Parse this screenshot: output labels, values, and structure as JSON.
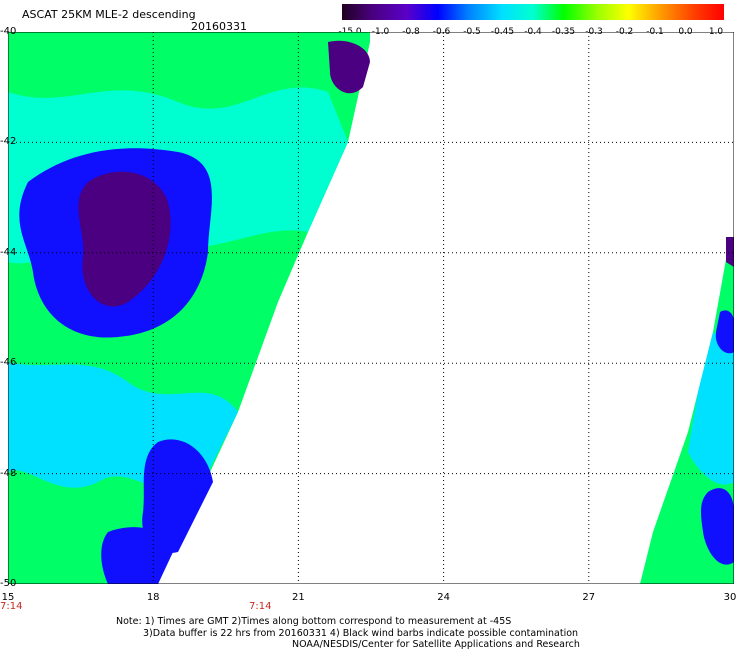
{
  "header": {
    "title": "ASCAT 25KM MLE-2 descending",
    "date": "20160331"
  },
  "colorbar": {
    "labels": [
      "-15.0",
      "-1.0",
      "-0.8",
      "-0.6",
      "-0.5",
      "-0.45",
      "-0.4",
      "-0.35",
      "-0.3",
      "-0.2",
      "-0.1",
      "0.0",
      "1.0"
    ],
    "colors": [
      "#200020",
      "#4a0080",
      "#5a00c8",
      "#0000ff",
      "#0080ff",
      "#00e0ff",
      "#00ffd0",
      "#00ff00",
      "#9cff00",
      "#ffff00",
      "#ffa000",
      "#ff4000",
      "#ff0000"
    ]
  },
  "map": {
    "lat_labels": [
      "-40",
      "-42",
      "-44",
      "-46",
      "-48",
      "-50"
    ],
    "lon_labels": [
      "15",
      "18",
      "21",
      "24",
      "27",
      "30"
    ],
    "time_labels": [
      "7:14",
      "7:14"
    ],
    "lat_range": [
      -50,
      -40
    ],
    "lon_range": [
      15,
      30
    ]
  },
  "notes": {
    "line1": "Note: 1) Times are GMT 2)Times along bottom correspond to measurement at -45S",
    "line2": "3)Data buffer is 22 hrs from 20160331 4) Black wind barbs indicate possible contamination",
    "line3": "NOAA/NESDIS/Center for Satellite Applications and Research"
  }
}
